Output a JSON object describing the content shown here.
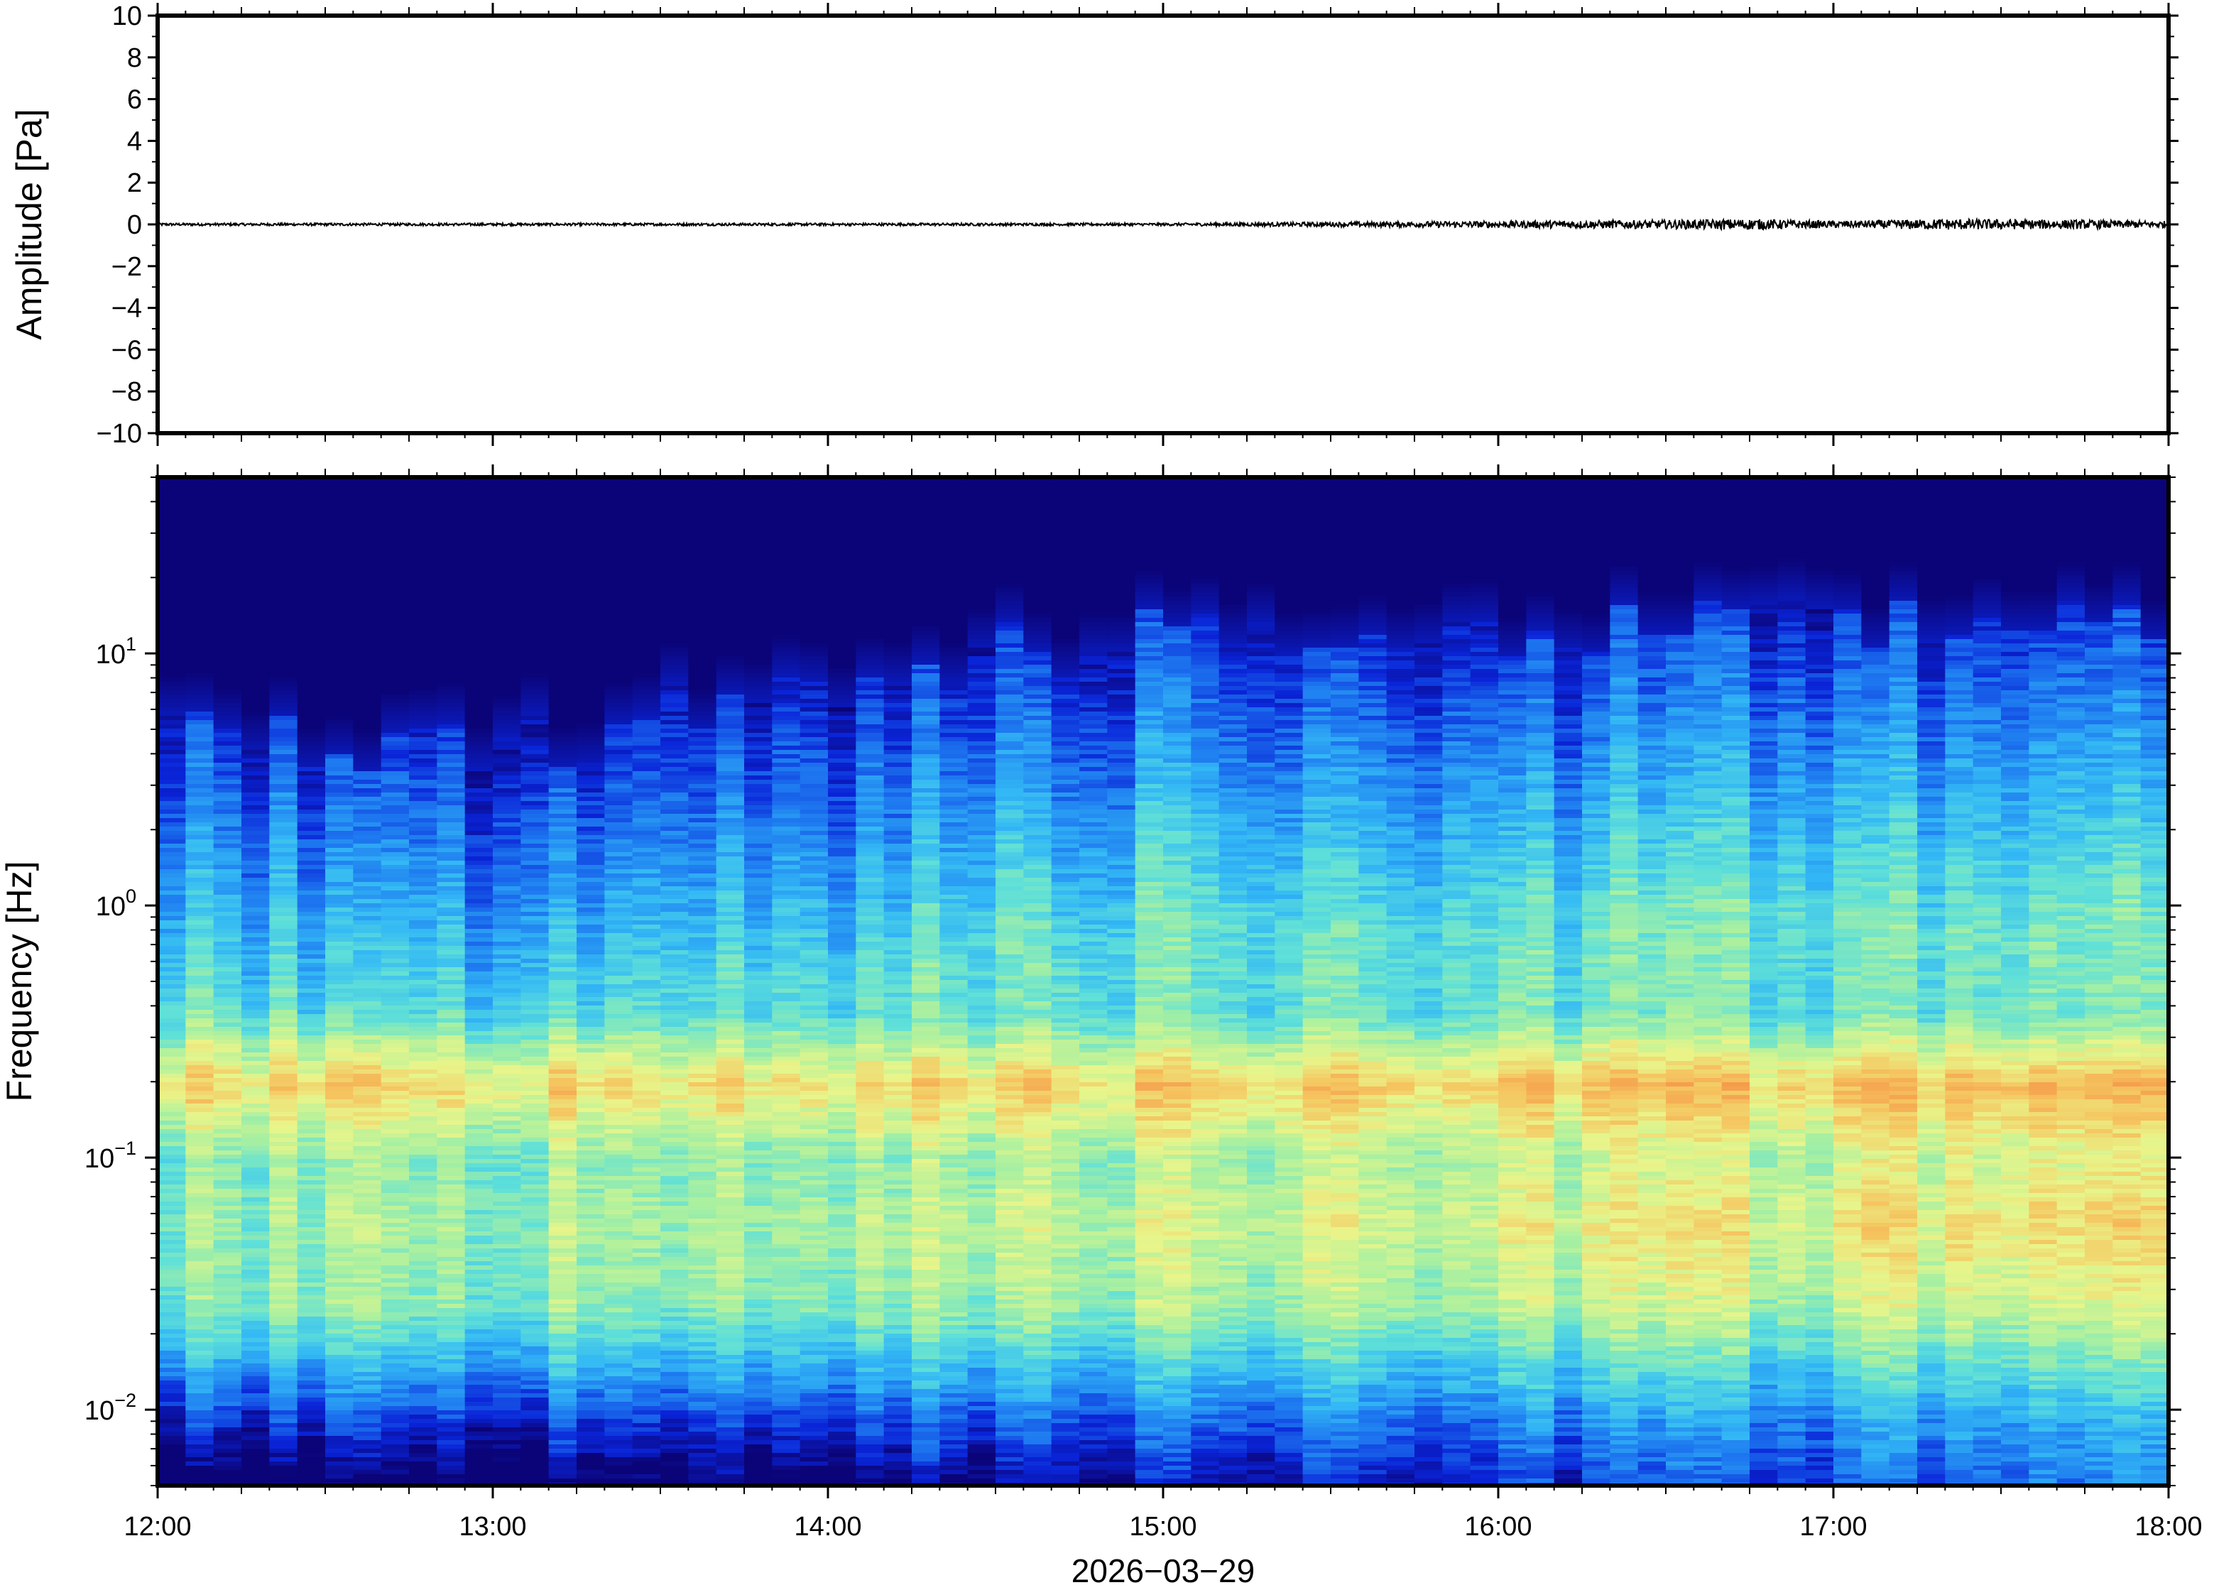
{
  "chart_data": [
    {
      "type": "line",
      "panel": "waveform",
      "title": "",
      "ylabel": "Amplitude [Pa]",
      "xlabel": "",
      "ylim": [
        -10,
        10
      ],
      "yticks": [
        10,
        8,
        6,
        4,
        2,
        0,
        -2,
        -4,
        -6,
        -8,
        -10
      ],
      "ytick_labels": [
        "10",
        "8",
        "6",
        "4",
        "2",
        "0",
        "−2",
        "−4",
        "−6",
        "−8",
        "−10"
      ],
      "xlim": [
        "12:00",
        "18:00"
      ],
      "series": [
        {
          "x": [
            "12:00",
            "13:00",
            "14:00",
            "15:00",
            "16:00",
            "16:30",
            "16:45",
            "17:00",
            "17:20",
            "17:45",
            "18:00"
          ],
          "y": [
            0,
            0,
            0,
            0,
            0.1,
            0.15,
            0.2,
            0.1,
            0.2,
            0.15,
            0.1
          ],
          "color": "#000000"
        }
      ],
      "grid": false
    },
    {
      "type": "heatmap",
      "panel": "spectrogram",
      "title": "",
      "ylabel": "Frequency [Hz]",
      "xlabel": "2026−03−29",
      "yscale": "log",
      "ylim": [
        0.005,
        50
      ],
      "ytick_labels": [
        {
          "base": "10",
          "exp": "1",
          "value": 10
        },
        {
          "base": "10",
          "exp": "0",
          "value": 1
        },
        {
          "base": "10",
          "exp": "−1",
          "value": 0.1
        },
        {
          "base": "10",
          "exp": "−2",
          "value": 0.01
        }
      ],
      "xticks": [
        "12:00",
        "13:00",
        "14:00",
        "15:00",
        "16:00",
        "17:00",
        "18:00"
      ],
      "colormap": [
        "#0b0478",
        "#0a24d8",
        "#1e7af0",
        "#33b8f5",
        "#5fe0d8",
        "#a9f0a0",
        "#e8f58a",
        "#f5c560",
        "#f59a4a"
      ],
      "colorbar_shown": false,
      "description_of_energy": {
        "upper_noise_edge_hz": {
          "12:00": 5,
          "13:00": 4,
          "14:00": 8,
          "15:00": 12,
          "16:00": 12,
          "17:00": 13,
          "18:00": 15
        },
        "microbarom_band_hz": [
          0.15,
          0.25
        ],
        "low_freq_band_hz": [
          0.03,
          0.1
        ]
      },
      "grid": false
    }
  ]
}
